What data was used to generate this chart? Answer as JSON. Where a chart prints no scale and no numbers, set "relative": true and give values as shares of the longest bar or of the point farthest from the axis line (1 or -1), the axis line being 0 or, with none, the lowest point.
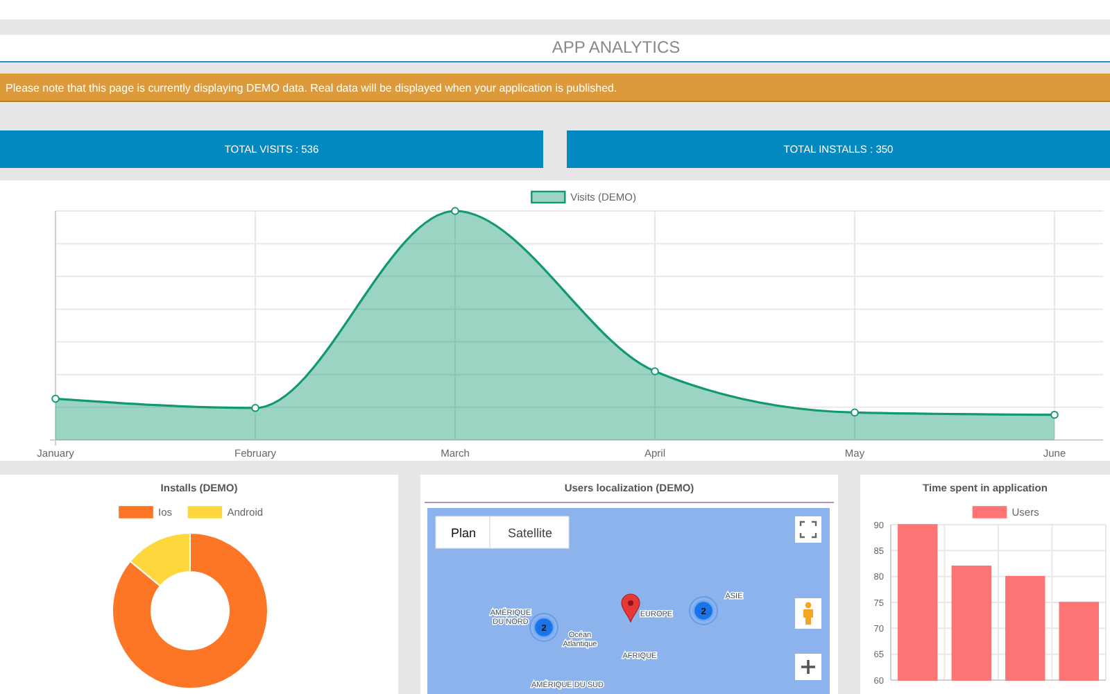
{
  "chart_data": [
    {
      "type": "other",
      "title": "APP ANALYTICS",
      "annotations": [
        "Please note that this page is currently displaying DEMO data. Real data will be displayed when your application is published.",
        "TOTAL VISITS : 536",
        "TOTAL INSTALLS : 350"
      ]
    },
    {
      "type": "area",
      "categories": [
        "January",
        "February",
        "March",
        "April",
        "May",
        "June"
      ],
      "series": [
        {
          "name": "Visits (DEMO)",
          "color": "#129873",
          "values": [
            0.18,
            0.14,
            1,
            0.3,
            0.12,
            0.11
          ]
        }
      ],
      "relative": true,
      "grid": true,
      "legend": "top",
      "marker": "circle"
    },
    {
      "type": "donut",
      "title": "Installs (DEMO)",
      "categories": [
        "Ios",
        "Android"
      ],
      "values": [
        86,
        14
      ],
      "colors": [
        "#fd7626",
        "#fed73c"
      ],
      "legend": "top"
    },
    {
      "type": "other",
      "title": "Users localization (DEMO)",
      "annotations": [
        "Plan",
        "Satellite",
        "AMÉRIQUE DU NORD",
        "Océan Atlantique",
        "EUROPE",
        "ASIE",
        "AFRIQUE",
        "AMÉRIQUE DU SUD",
        "2",
        "2"
      ]
    },
    {
      "type": "bar",
      "title": "Time spent in application",
      "categories": [
        null,
        null,
        null,
        null
      ],
      "series": [
        {
          "name": "Users",
          "color": "#fc7474",
          "values": [
            90,
            82,
            80,
            75
          ]
        }
      ],
      "ylim": [
        60,
        90
      ],
      "yticks": [
        60,
        65,
        70,
        75,
        80,
        85,
        90
      ],
      "grid": true,
      "legend": "top"
    }
  ]
}
